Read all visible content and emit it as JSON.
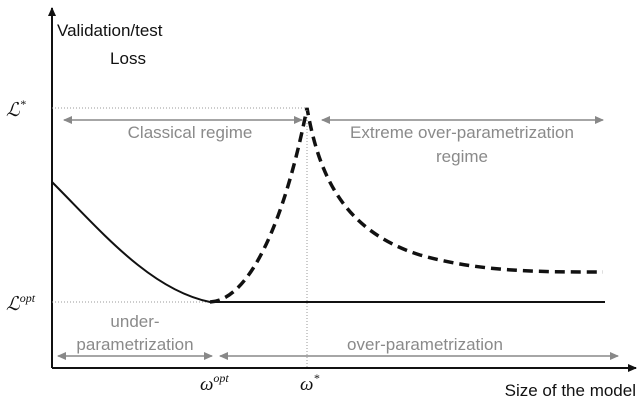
{
  "y_axis_title": {
    "line1": "Validation/test",
    "line2": "Loss"
  },
  "x_axis_title": "Size of the model",
  "y_markers": [
    {
      "base": "ℒ",
      "sup": "*"
    },
    {
      "base": "ℒ",
      "sup": "opt"
    }
  ],
  "x_markers": [
    {
      "base": "ω",
      "sup": "opt"
    },
    {
      "base": "ω",
      "sup": "*"
    }
  ],
  "regions": {
    "classical": "Classical regime",
    "extreme": {
      "line1": "Extreme over-parametrization",
      "line2": "regime"
    },
    "under": {
      "line1": "under-",
      "line2": "parametrization"
    },
    "over": "over-parametrization"
  }
}
